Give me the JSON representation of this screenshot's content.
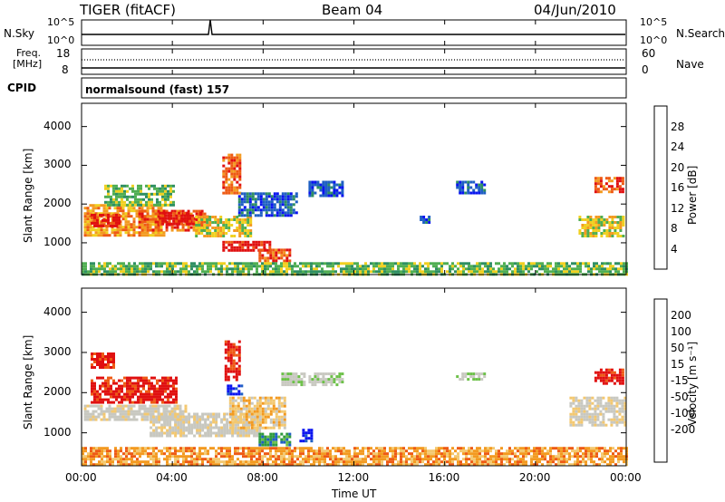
{
  "header": {
    "radar": "TIGER (fitACF)",
    "beam": "Beam 04",
    "date": "04/Jun/2010"
  },
  "aux_panels": {
    "nsky_label": "N.Sky",
    "nsearch_label": "N.Search",
    "freq_label_1": "Freq.",
    "freq_label_2": "[MHz]",
    "nave_label": "Nave",
    "cpid_label": "CPID",
    "cpid_value": "normalsound (fast) 157",
    "noise_ticks_left": [
      "10^5",
      "10^0"
    ],
    "noise_ticks_right": [
      "10^5",
      "10^0"
    ],
    "freq_ticks_left": [
      "18",
      "8"
    ],
    "nave_ticks_right": [
      "60",
      "0"
    ]
  },
  "colors": {
    "power_scale": [
      "#0a14f0",
      "#1f5fc4",
      "#2e8f62",
      "#4fae52",
      "#f0d020",
      "#f39a20",
      "#ee5a14",
      "#e01010"
    ],
    "velocity_scale": [
      "#e01010",
      "#ee5a14",
      "#f39a20",
      "#f3c870",
      "#c8c8c0",
      "#c8c8c0",
      "#6cc048",
      "#2e9a3e",
      "#1f5fc4",
      "#0a14f0"
    ]
  },
  "chart_data": [
    {
      "type": "heatmap",
      "panel": "power",
      "ylabel": "Slant Range [km]",
      "colorbar_label": "Power [dB]",
      "colorbar_ticks": [
        "4",
        "8",
        "12",
        "16",
        "20",
        "24",
        "28"
      ],
      "y_ticks": [
        "1000",
        "2000",
        "3000",
        "4000"
      ],
      "ylim": [
        180,
        4600
      ],
      "xlim": [
        0,
        24
      ],
      "regions": [
        {
          "t0": 0.1,
          "t1": 3.6,
          "r0": 1200,
          "r1": 2000,
          "level": 5
        },
        {
          "t0": 0.4,
          "t1": 1.6,
          "r0": 1450,
          "r1": 1750,
          "level": 7
        },
        {
          "t0": 2.5,
          "t1": 5.6,
          "r0": 1300,
          "r1": 1850,
          "level": 6
        },
        {
          "t0": 3.4,
          "t1": 5.3,
          "r0": 1500,
          "r1": 1800,
          "level": 7
        },
        {
          "t0": 5.0,
          "t1": 7.5,
          "r0": 1150,
          "r1": 1700,
          "level": 4
        },
        {
          "t0": 6.2,
          "t1": 8.3,
          "r0": 780,
          "r1": 1050,
          "level": 7
        },
        {
          "t0": 7.8,
          "t1": 9.2,
          "r0": 500,
          "r1": 850,
          "level": 6
        },
        {
          "t0": 1.0,
          "t1": 4.0,
          "r0": 1950,
          "r1": 2500,
          "level": 3
        },
        {
          "t0": 6.2,
          "t1": 7.0,
          "r0": 2300,
          "r1": 3300,
          "level": 6
        },
        {
          "t0": 6.9,
          "t1": 9.5,
          "r0": 1700,
          "r1": 2300,
          "level": 1
        },
        {
          "t0": 10.0,
          "t1": 11.5,
          "r0": 2200,
          "r1": 2600,
          "level": 1
        },
        {
          "t0": 16.5,
          "t1": 17.8,
          "r0": 2300,
          "r1": 2600,
          "level": 1
        },
        {
          "t0": 14.9,
          "t1": 15.3,
          "r0": 1500,
          "r1": 1700,
          "level": 1
        },
        {
          "t0": 21.9,
          "t1": 23.9,
          "r0": 1200,
          "r1": 1700,
          "level": 4
        },
        {
          "t0": 22.6,
          "t1": 23.8,
          "r0": 2300,
          "r1": 2700,
          "level": 6
        },
        {
          "t0": 0.0,
          "t1": 24.0,
          "r0": 200,
          "r1": 500,
          "level": 3
        }
      ]
    },
    {
      "type": "heatmap",
      "panel": "velocity",
      "ylabel": "Slant Range [km]",
      "colorbar_label": "Velocity [m s⁻¹]",
      "colorbar_ticks": [
        "200",
        "100",
        "50",
        "15",
        "-15",
        "-50",
        "-100",
        "-200"
      ],
      "y_ticks": [
        "1000",
        "2000",
        "3000",
        "4000"
      ],
      "x_ticks": [
        "00:00",
        "04:00",
        "08:00",
        "12:00",
        "16:00",
        "20:00",
        "00:00"
      ],
      "xlabel": "Time UT",
      "ylim": [
        180,
        4600
      ],
      "xlim": [
        0,
        24
      ],
      "regions": [
        {
          "t0": 0.1,
          "t1": 4.6,
          "r0": 1300,
          "r1": 1700,
          "level": 4
        },
        {
          "t0": 0.4,
          "t1": 4.2,
          "r0": 1750,
          "r1": 2400,
          "level": 0
        },
        {
          "t0": 0.4,
          "t1": 1.4,
          "r0": 2600,
          "r1": 3000,
          "level": 0
        },
        {
          "t0": 3.0,
          "t1": 7.8,
          "r0": 950,
          "r1": 1500,
          "level": 4
        },
        {
          "t0": 6.3,
          "t1": 6.9,
          "r0": 2300,
          "r1": 3300,
          "level": 0
        },
        {
          "t0": 6.4,
          "t1": 7.0,
          "r0": 1950,
          "r1": 2200,
          "level": 9
        },
        {
          "t0": 6.5,
          "t1": 9.0,
          "r0": 1100,
          "r1": 1900,
          "level": 3
        },
        {
          "t0": 7.8,
          "t1": 9.2,
          "r0": 700,
          "r1": 1000,
          "level": 7
        },
        {
          "t0": 8.8,
          "t1": 9.8,
          "r0": 2200,
          "r1": 2500,
          "level": 5
        },
        {
          "t0": 9.6,
          "t1": 10.1,
          "r0": 800,
          "r1": 1100,
          "level": 9
        },
        {
          "t0": 10.0,
          "t1": 11.5,
          "r0": 2200,
          "r1": 2500,
          "level": 5
        },
        {
          "t0": 16.5,
          "t1": 17.8,
          "r0": 2300,
          "r1": 2500,
          "level": 5
        },
        {
          "t0": 22.6,
          "t1": 23.9,
          "r0": 2200,
          "r1": 2600,
          "level": 0
        },
        {
          "t0": 21.5,
          "t1": 24.0,
          "r0": 1200,
          "r1": 1900,
          "level": 4
        },
        {
          "t0": 0.0,
          "t1": 24.0,
          "r0": 200,
          "r1": 650,
          "level": 2
        }
      ]
    }
  ]
}
